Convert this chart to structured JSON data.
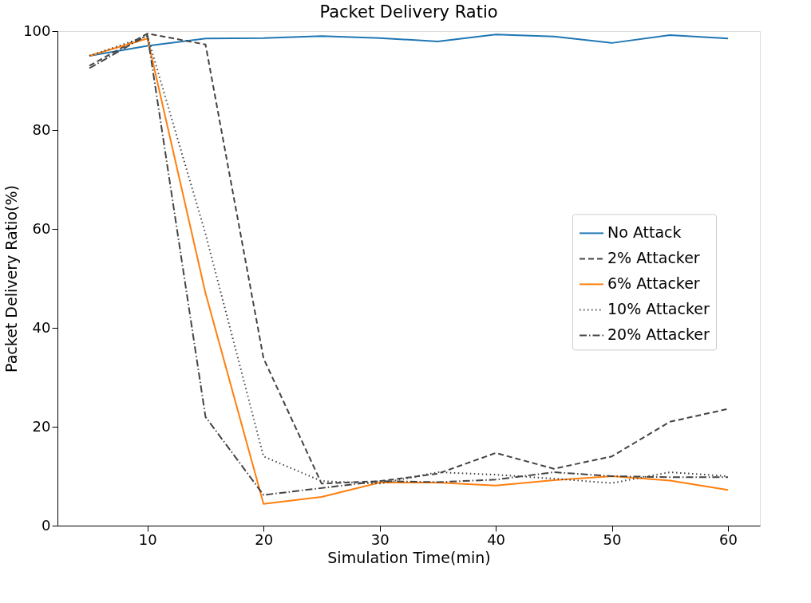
{
  "chart_data": {
    "type": "line",
    "title": "Packet Delivery Ratio",
    "xlabel": "Simulation Time(min)",
    "ylabel": "Packet Delivery Ratio(%)",
    "x": [
      5,
      10,
      15,
      20,
      25,
      30,
      35,
      40,
      45,
      50,
      55,
      60
    ],
    "series": [
      {
        "name": "No Attack",
        "color": "#1f77b4",
        "line_style": "solid",
        "values": [
          95,
          97,
          98.5,
          98.6,
          99,
          98.6,
          97.9,
          99.3,
          98.9,
          97.6,
          99.2,
          98.5
        ]
      },
      {
        "name": "2% Attacker",
        "color": "#444444",
        "line_style": "dashed",
        "values": [
          93,
          99.5,
          97.3,
          33.8,
          8.5,
          9,
          10.5,
          14.7,
          11.5,
          14,
          21,
          23.6
        ]
      },
      {
        "name": "6% Attacker",
        "color": "#ff7f0e",
        "line_style": "solid",
        "values": [
          95,
          98.5,
          47,
          4.4,
          5.8,
          8.7,
          8.7,
          8.1,
          9.2,
          10,
          9.1,
          7.2
        ]
      },
      {
        "name": "10% Attacker",
        "color": "#444444",
        "line_style": "dotted",
        "values": [
          95,
          99,
          59,
          14,
          9,
          8.5,
          10.8,
          10.3,
          9.5,
          8.6,
          10.8,
          10
        ]
      },
      {
        "name": "20% Attacker",
        "color": "#444444",
        "line_style": "dashdot",
        "values": [
          92.5,
          99.2,
          22,
          6.2,
          7.6,
          9,
          8.8,
          9.3,
          10.8,
          10,
          9.8,
          9.8
        ]
      }
    ],
    "xlim": [
      2.25,
      62.75
    ],
    "ylim": [
      0,
      100
    ],
    "xticks": [
      10,
      20,
      30,
      40,
      50,
      60
    ],
    "yticks": [
      0,
      20,
      40,
      60,
      80,
      100
    ],
    "legend": "right",
    "grid": false
  }
}
